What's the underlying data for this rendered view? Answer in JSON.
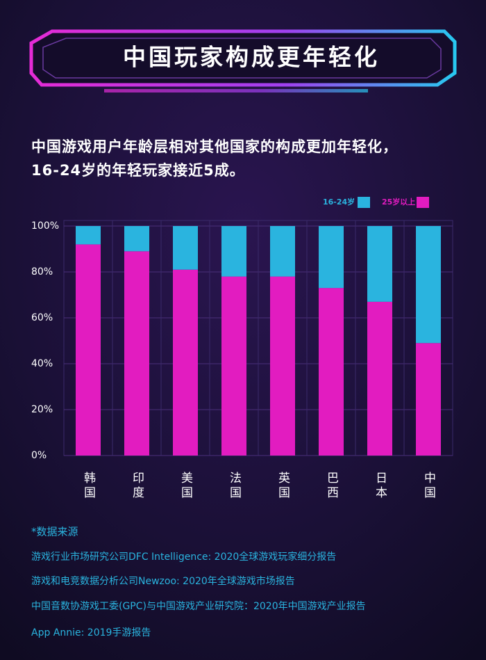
{
  "chart_data": {
    "type": "stacked_bar",
    "title": "中国玩家构成更年轻化",
    "subtitle": [
      "中国游戏用户年龄层相对其他国家的构成更加年轻化，",
      "16-24岁的年轻玩家接近5成。"
    ],
    "categories": [
      "韩国",
      "印度",
      "美国",
      "法国",
      "英国",
      "巴西",
      "日本",
      "中国"
    ],
    "series": [
      {
        "name": "16-24岁",
        "color": "#2ab4df",
        "values": [
          8,
          11,
          19,
          22,
          22,
          27,
          33,
          51
        ]
      },
      {
        "name": "25岁以上",
        "color": "#e21cc0",
        "values": [
          92,
          89,
          81,
          78,
          78,
          73,
          67,
          49
        ]
      }
    ],
    "ylim": [
      0,
      100
    ],
    "yticks": [
      {
        "value": 0,
        "label": "0%"
      },
      {
        "value": 20,
        "label": "20%"
      },
      {
        "value": 40,
        "label": "40%"
      },
      {
        "value": 60,
        "label": "60%"
      },
      {
        "value": 80,
        "label": "80%"
      },
      {
        "value": 100,
        "label": "100%"
      }
    ],
    "grid": true,
    "legend": "top-right"
  },
  "source_title": "*数据来源",
  "sources": [
    "游戏行业市场研究公司DFC Intelligence: 2020全球游戏玩家细分报告",
    "游戏和电竞数据分析公司Newzoo: 2020年全球游戏市场报告",
    "中国音数协游戏工委(GPC)与中国游戏产业研究院：2020年中国游戏产业报告",
    "App Annie: 2019手游报告"
  ]
}
